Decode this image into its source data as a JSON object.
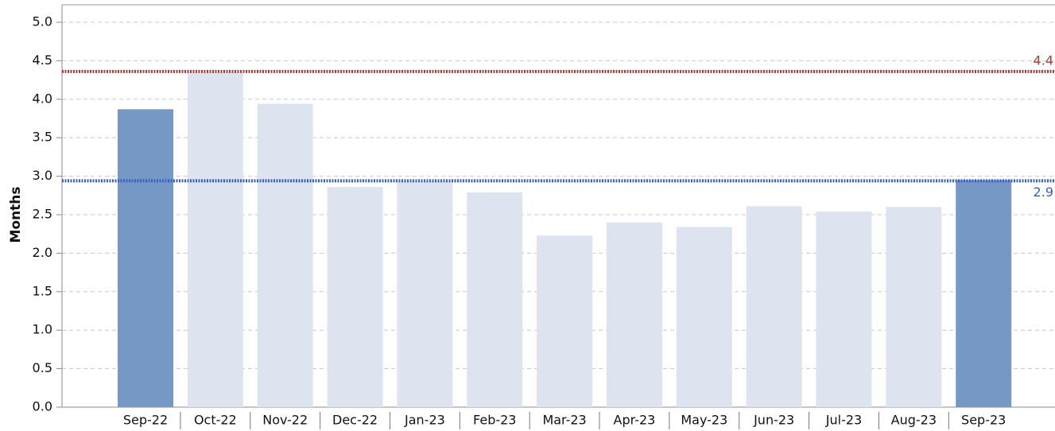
{
  "chart_data": {
    "type": "bar",
    "ylabel": "Months",
    "categories": [
      "Sep-22",
      "Oct-22",
      "Nov-22",
      "Dec-22",
      "Jan-23",
      "Feb-23",
      "Mar-23",
      "Apr-23",
      "May-23",
      "Jun-23",
      "Jul-23",
      "Aug-23",
      "Sep-23"
    ],
    "values": [
      3.87,
      4.35,
      3.94,
      2.86,
      2.93,
      2.79,
      2.23,
      2.4,
      2.34,
      2.61,
      2.54,
      2.6,
      2.95
    ],
    "colors": [
      "#7598c4",
      "#dde3ef",
      "#dde3ef",
      "#dde3ef",
      "#dde3ef",
      "#dde3ef",
      "#dde3ef",
      "#dde3ef",
      "#dde3ef",
      "#dde3ef",
      "#dde3ef",
      "#dde3ef",
      "#7598c4"
    ],
    "ylim": [
      0,
      5.2
    ],
    "yticks": [
      {
        "value": 0,
        "label": "0.0"
      },
      0.5,
      {
        "value": 1,
        "label": "1.0"
      },
      1.5,
      {
        "value": 2,
        "label": "2.0"
      },
      2.5,
      {
        "value": 3,
        "label": "3.0"
      },
      3.5,
      {
        "value": 4,
        "label": "4.0"
      },
      4.5,
      {
        "value": 5,
        "label": "5.0"
      }
    ],
    "grid": true,
    "reference_lines": [
      {
        "value": 4.36,
        "label": "4.4",
        "color": "#a0403a"
      },
      {
        "value": 2.94,
        "label": "2.9",
        "color": "#3a5fc8"
      }
    ]
  }
}
